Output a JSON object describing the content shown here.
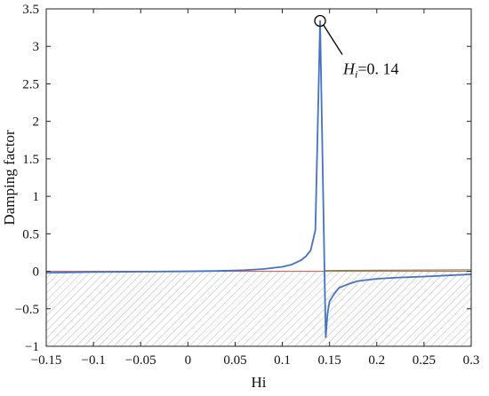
{
  "chart_data": {
    "type": "line",
    "title": "",
    "xlabel": "Hi",
    "ylabel": "Damping factor",
    "xlim": [
      -0.15,
      0.3
    ],
    "ylim": [
      -1,
      3.5
    ],
    "x_ticks": [
      -0.15,
      -0.1,
      -0.05,
      0,
      0.05,
      0.1,
      0.15,
      0.2,
      0.25,
      0.3
    ],
    "x_tick_labels": [
      "−0.15",
      "−0.1",
      "−0.05",
      "0",
      "0.05",
      "0.1",
      "0.15",
      "0.2",
      "0.25",
      "0.3"
    ],
    "y_ticks": [
      -1,
      -0.5,
      0,
      0.5,
      1,
      1.5,
      2,
      2.5,
      3,
      3.5
    ],
    "y_tick_labels": [
      "−1",
      "−0.5",
      "0",
      "0.5",
      "1",
      "1.5",
      "2",
      "2.5",
      "3",
      "3.5"
    ],
    "grid": false,
    "legend": "none",
    "series": [
      {
        "color": "#4472C4",
        "x": [
          -0.15,
          -0.1,
          -0.05,
          0,
          0.03,
          0.06,
          0.08,
          0.1,
          0.11,
          0.12,
          0.125,
          0.13,
          0.135,
          0.14,
          0.14,
          0.145,
          0.146,
          0.147,
          0.148,
          0.15,
          0.155,
          0.16,
          0.17,
          0.18,
          0.2,
          0.22,
          0.25,
          0.3
        ],
        "y": [
          -0.02,
          -0.01,
          -0.005,
          0.0,
          0.005,
          0.015,
          0.03,
          0.06,
          0.09,
          0.15,
          0.2,
          0.28,
          0.55,
          3.34,
          3.34,
          -0.25,
          -0.88,
          -0.7,
          -0.55,
          -0.4,
          -0.3,
          -0.22,
          -0.17,
          -0.13,
          -0.1,
          -0.085,
          -0.07,
          -0.04
        ]
      },
      {
        "color": "#E06060",
        "x": [
          -0.15,
          0.3
        ],
        "y": [
          0.0,
          0.0
        ]
      },
      {
        "color": "#5A9A5A",
        "x": [
          0.145,
          0.3
        ],
        "y": [
          0.01,
          0.02
        ]
      }
    ],
    "shaded_region": {
      "y_from": -1,
      "y_to": 0,
      "pattern": "diagonal-hatch",
      "color": "#b0b0b0"
    },
    "annotations": [
      {
        "text_italic": "H",
        "text_sub": "i",
        "text_rest": "=0. 14",
        "point": [
          0.14,
          3.34
        ],
        "marker": "circle"
      }
    ]
  }
}
